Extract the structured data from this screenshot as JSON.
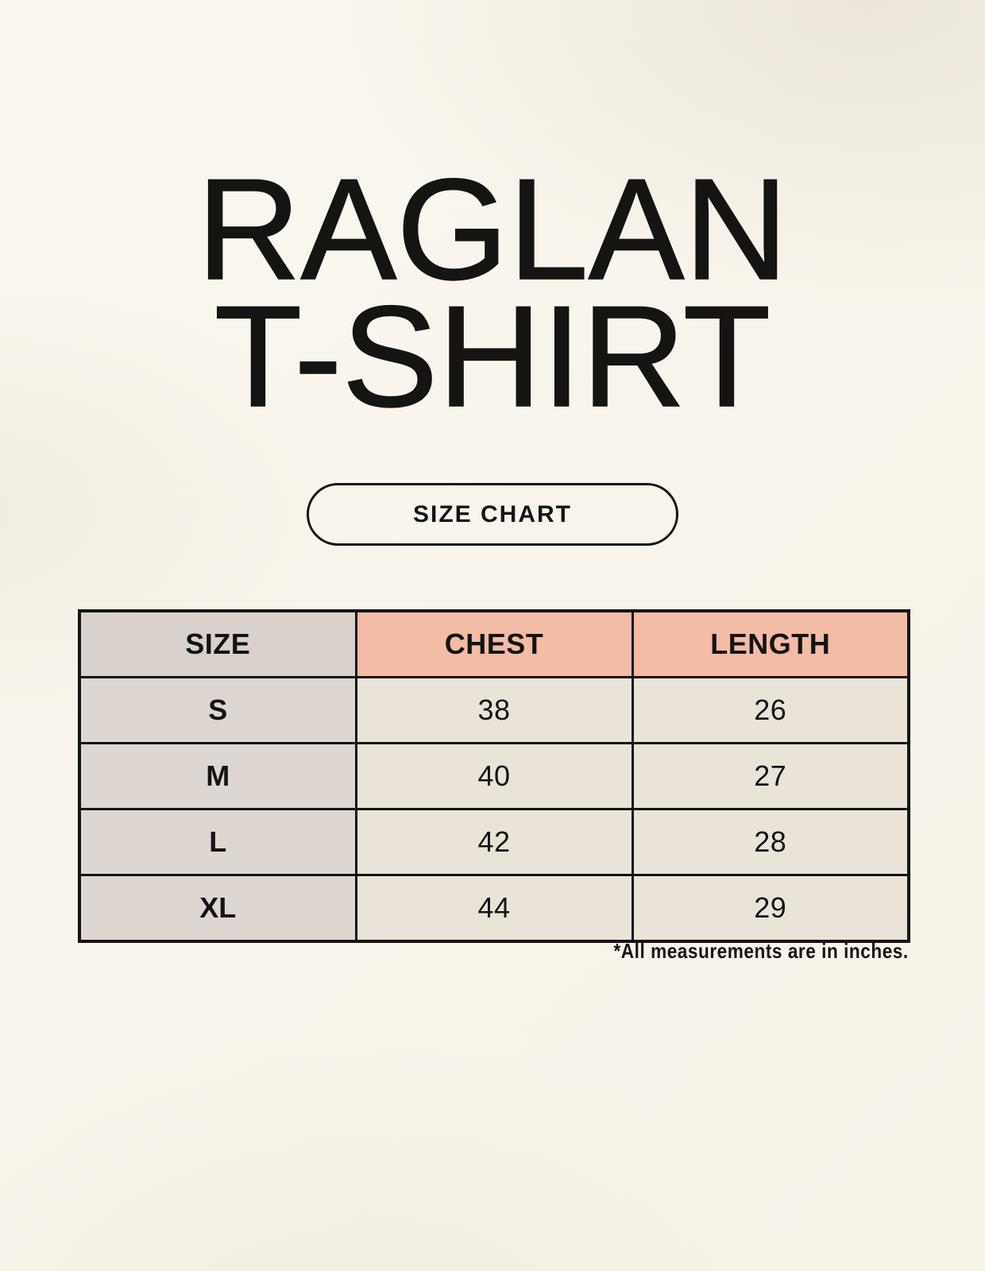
{
  "header": {
    "title_line1": "RAGLAN",
    "title_line2": "T-SHIRT",
    "button_label": "SIZE CHART"
  },
  "table": {
    "columns": [
      "SIZE",
      "CHEST",
      "LENGTH"
    ],
    "rows": [
      {
        "size": "S",
        "chest": "38",
        "length": "26"
      },
      {
        "size": "M",
        "chest": "40",
        "length": "27"
      },
      {
        "size": "L",
        "chest": "42",
        "length": "28"
      },
      {
        "size": "XL",
        "chest": "44",
        "length": "29"
      }
    ],
    "units_note": "*All measurements are in inches."
  },
  "colors": {
    "background": "#F8F4EB",
    "header_label_bg": "#D9D2CC",
    "header_measure_bg": "#F2BCA7",
    "row_label_bg": "#DED7D1",
    "row_value_bg": "#EAE3D7",
    "border": "#151413",
    "text": "#151413"
  }
}
